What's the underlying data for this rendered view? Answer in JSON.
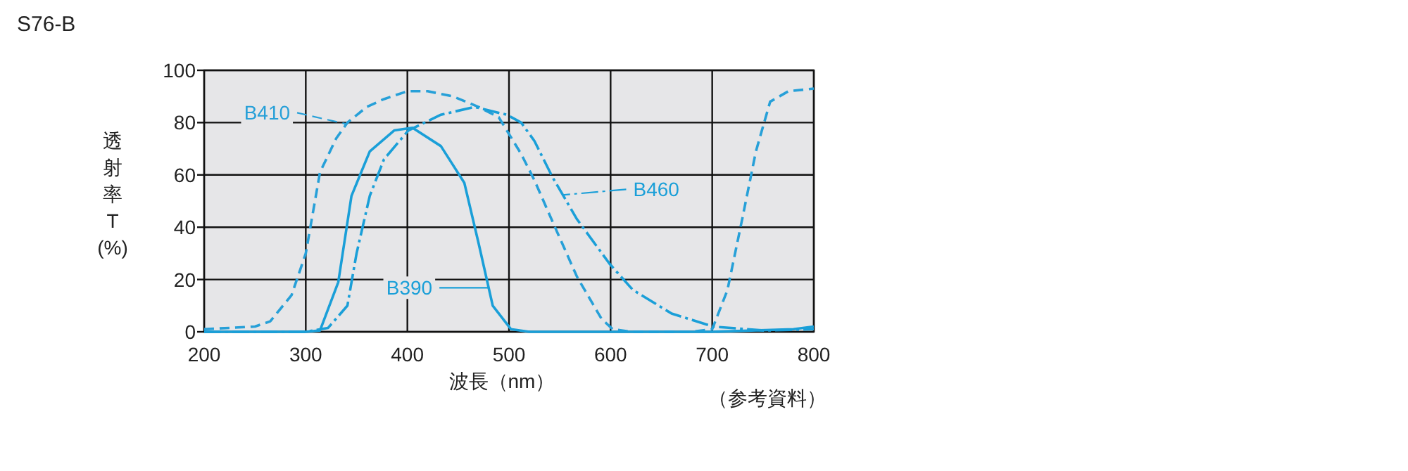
{
  "chart_data": {
    "type": "line",
    "title": "S76-B",
    "xlabel": "波長（nm）",
    "ylabel": "透射率T(%)",
    "annotations": [
      "（参考資料）"
    ],
    "xlim": [
      200,
      800
    ],
    "ylim": [
      0,
      100
    ],
    "xticks": [
      200,
      300,
      400,
      500,
      600,
      700,
      800
    ],
    "yticks": [
      0,
      20,
      40,
      60,
      80,
      100
    ],
    "grid": true,
    "legend": "top left",
    "series": [
      {
        "name": "B410",
        "color": "#27a0d8",
        "line_style": "dashed",
        "x": [
          200,
          250,
          265,
          286,
          300,
          314,
          330,
          341,
          360,
          377,
          400,
          420,
          445,
          470,
          490,
          512,
          525,
          543,
          567,
          591,
          602,
          620,
          680,
          700,
          715,
          730,
          743,
          757,
          775,
          800
        ],
        "values": [
          1,
          2,
          4,
          14,
          30,
          61,
          74,
          80,
          86,
          89,
          92,
          92,
          90,
          86,
          82,
          68,
          58,
          42,
          21,
          5,
          1,
          0,
          0,
          1,
          16,
          44,
          69,
          88,
          92,
          93
        ]
      },
      {
        "name": "B390",
        "color": "#1a9fd8",
        "line_style": "solid",
        "x": [
          200,
          300,
          314,
          332,
          345,
          363,
          387,
          405,
          433,
          456,
          470,
          484,
          502,
          520,
          700,
          780,
          800
        ],
        "values": [
          0,
          0,
          0.5,
          19,
          52,
          69,
          77,
          78,
          71,
          57,
          34,
          10,
          1,
          0,
          0,
          1,
          2
        ]
      },
      {
        "name": "B460",
        "color": "#1a9fd8",
        "line_style": "dashdot",
        "x": [
          200,
          300,
          322,
          341,
          350,
          363,
          377,
          401,
          433,
          466,
          498,
          512,
          525,
          543,
          567,
          599,
          622,
          660,
          701,
          751,
          800
        ],
        "values": [
          0,
          0,
          1.5,
          10,
          30,
          52,
          66,
          77,
          83,
          86,
          83,
          80,
          73,
          59,
          43,
          26,
          16,
          7,
          2,
          0.5,
          1
        ]
      }
    ]
  }
}
